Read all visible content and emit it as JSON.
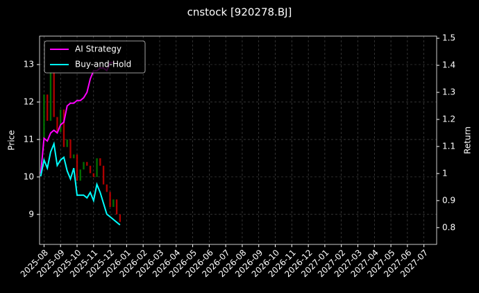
{
  "chart_data": {
    "type": "price-return",
    "title": "cnstock [920278.BJ]",
    "y_label": "Price",
    "y2_label": "Return",
    "x": [
      -0.2,
      0,
      0.2,
      0.4,
      0.6,
      0.8,
      1.0,
      1.2,
      1.4,
      1.6,
      1.8,
      2.0,
      2.2,
      2.4,
      2.6,
      2.8,
      3.0,
      3.2,
      3.4,
      3.6,
      3.8,
      4.0,
      4.2,
      4.4,
      4.6
    ],
    "price": {
      "values": [
        11.0,
        12.2,
        11.5,
        12.8,
        11.6,
        11.2,
        11.8,
        10.8,
        11.0,
        10.5,
        10.6,
        9.9,
        10.2,
        10.4,
        10.3,
        10.1,
        10.0,
        10.5,
        10.3,
        9.8,
        9.6,
        9.2,
        9.4,
        9.0,
        8.8
      ],
      "up_color": "#008000",
      "down_color": "#cc0000"
    },
    "series": [
      {
        "name": "AI Strategy",
        "color": "#ff00ff",
        "axis": "y2",
        "values": [
          1.0,
          1.13,
          1.12,
          1.15,
          1.16,
          1.15,
          1.18,
          1.19,
          1.25,
          1.26,
          1.26,
          1.27,
          1.27,
          1.28,
          1.3,
          1.35,
          1.38,
          1.38,
          1.39,
          1.39,
          1.38,
          1.41,
          1.41,
          null,
          null
        ]
      },
      {
        "name": "Buy-and-Hold",
        "color": "#00ffff",
        "axis": "y2",
        "values": [
          0.99,
          1.05,
          1.02,
          1.08,
          1.11,
          1.03,
          1.05,
          1.06,
          1.01,
          0.98,
          1.02,
          0.92,
          0.92,
          0.92,
          0.91,
          0.93,
          0.9,
          0.96,
          0.93,
          0.89,
          0.85,
          0.84,
          0.83,
          0.82,
          0.81
        ]
      }
    ],
    "xlim": [
      -0.27,
      23.77
    ],
    "xticks": [
      {
        "value": 0,
        "label": "2025-08"
      },
      {
        "value": 1,
        "label": "2025-09"
      },
      {
        "value": 2,
        "label": "2025-10"
      },
      {
        "value": 3,
        "label": "2025-11"
      },
      {
        "value": 4,
        "label": "2025-12"
      },
      {
        "value": 5,
        "label": "2026-01"
      },
      {
        "value": 6,
        "label": "2026-02"
      },
      {
        "value": 7,
        "label": "2026-03"
      },
      {
        "value": 8,
        "label": "2026-04"
      },
      {
        "value": 9,
        "label": "2026-05"
      },
      {
        "value": 10,
        "label": "2026-06"
      },
      {
        "value": 11,
        "label": "2026-07"
      },
      {
        "value": 12,
        "label": "2026-08"
      },
      {
        "value": 13,
        "label": "2026-09"
      },
      {
        "value": 14,
        "label": "2026-10"
      },
      {
        "value": 15,
        "label": "2026-11"
      },
      {
        "value": 16,
        "label": "2026-12"
      },
      {
        "value": 17,
        "label": "2027-01"
      },
      {
        "value": 18,
        "label": "2027-02"
      },
      {
        "value": 19,
        "label": "2027-03"
      },
      {
        "value": 20,
        "label": "2027-04"
      },
      {
        "value": 21,
        "label": "2027-05"
      },
      {
        "value": 22,
        "label": "2027-06"
      },
      {
        "value": 23,
        "label": "2027-07"
      }
    ],
    "ylim": [
      8.2,
      13.76
    ],
    "yticks": [
      9,
      10,
      11,
      12,
      13
    ],
    "y2lim": [
      0.738,
      1.508
    ],
    "y2ticks": [
      0.8,
      0.9,
      1.0,
      1.1,
      1.2,
      1.3,
      1.4,
      1.5
    ],
    "grid": true,
    "legend": "upper left"
  }
}
